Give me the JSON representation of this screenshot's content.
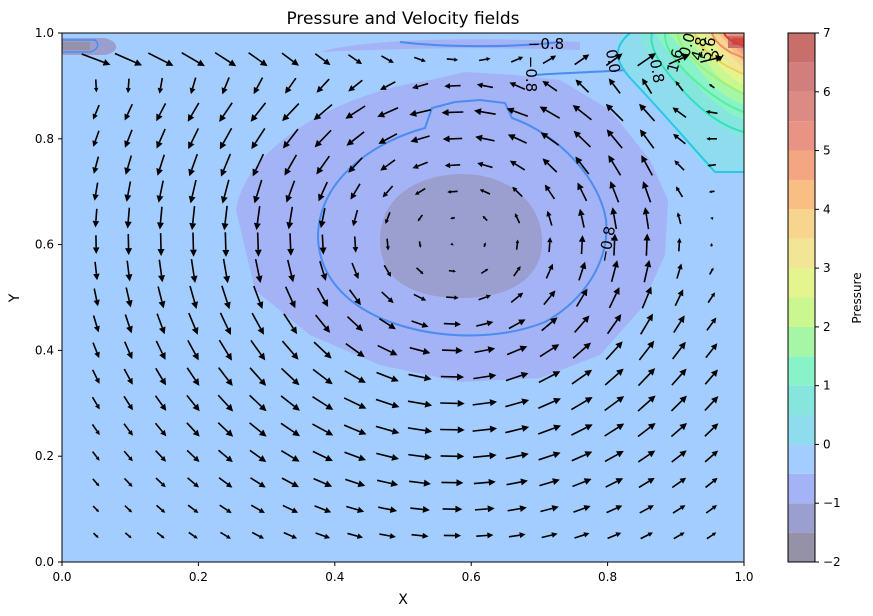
{
  "chart_data": {
    "type": "contourf_quiver",
    "title": "Pressure and Velocity fields",
    "xlabel": "X",
    "ylabel": "Y",
    "xlim": [
      0.0,
      1.0
    ],
    "ylim": [
      0.0,
      1.0
    ],
    "xticks": [
      "0.0",
      "0.2",
      "0.4",
      "0.6",
      "0.8",
      "1.0"
    ],
    "yticks": [
      "0.0",
      "0.2",
      "0.4",
      "0.6",
      "0.8",
      "1.0"
    ],
    "colorbar": {
      "label": "Pressure",
      "min": -2,
      "max": 7,
      "ticks": [
        "7",
        "6",
        "5",
        "4",
        "3",
        "2",
        "1",
        "0",
        "−1",
        "−2"
      ],
      "levels": [
        -2,
        -1.5,
        -1,
        -0.5,
        0,
        0.5,
        1,
        1.5,
        2,
        2.5,
        3,
        3.5,
        4,
        4.5,
        5,
        5.5,
        6,
        6.5,
        7
      ],
      "colors": [
        "#9591a6",
        "#9b9fd0",
        "#a4b3f5",
        "#a3ccff",
        "#8fdcef",
        "#86e6dd",
        "#88f2c8",
        "#a5f7a5",
        "#cbf790",
        "#e4f48f",
        "#f3e596",
        "#f8d58f",
        "#f8be83",
        "#f4a682",
        "#e99384",
        "#dc8a84",
        "#d17e7c",
        "#c86f6c"
      ]
    },
    "vortex_center": [
      0.58,
      0.61
    ],
    "contour_labels": [
      "−0.8",
      "0.0",
      "−0.8",
      "0.0",
      "0.8",
      "1.6",
      "4.8",
      "5.6",
      "2"
    ],
    "grid": false
  }
}
